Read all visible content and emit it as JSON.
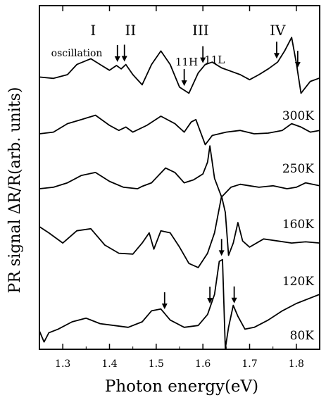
{
  "chart_data": {
    "type": "line",
    "xlabel": "Photon  energy(eV)",
    "ylabel": "PR  signal ΔR/R(arb. units)",
    "xlim": [
      1.25,
      1.85
    ],
    "x_ticks": [
      "1.3",
      "1.4",
      "1.5",
      "1.6",
      "1.7",
      "1.8"
    ],
    "grid": false,
    "region_labels": [
      {
        "text": "I",
        "x": 1.365
      },
      {
        "text": "II",
        "x": 1.445
      },
      {
        "text": "III",
        "x": 1.595
      },
      {
        "text": "IV",
        "x": 1.76
      }
    ],
    "annotations": [
      {
        "text": "oscillation",
        "x": 1.33
      },
      {
        "text": "11H",
        "x": 1.565
      },
      {
        "text": "11L",
        "x": 1.625
      }
    ],
    "series": [
      {
        "name": "300K",
        "x": [
          1.25,
          1.28,
          1.31,
          1.33,
          1.36,
          1.38,
          1.4,
          1.415,
          1.425,
          1.435,
          1.45,
          1.47,
          1.49,
          1.51,
          1.53,
          1.55,
          1.57,
          1.59,
          1.605,
          1.62,
          1.64,
          1.66,
          1.68,
          1.7,
          1.72,
          1.74,
          1.76,
          1.775,
          1.79,
          1.8,
          1.81,
          1.83,
          1.85
        ],
        "y": [
          0.18,
          0.14,
          0.25,
          0.55,
          0.72,
          0.55,
          0.38,
          0.52,
          0.42,
          0.55,
          0.25,
          -0.05,
          0.55,
          0.95,
          0.55,
          -0.12,
          -0.3,
          0.3,
          0.55,
          0.62,
          0.45,
          0.35,
          0.25,
          0.1,
          0.25,
          0.42,
          0.62,
          0.95,
          1.35,
          0.6,
          -0.3,
          0.05,
          0.15
        ]
      },
      {
        "name": "250K",
        "x": [
          1.25,
          1.28,
          1.31,
          1.34,
          1.37,
          1.4,
          1.42,
          1.435,
          1.45,
          1.48,
          1.51,
          1.54,
          1.56,
          1.575,
          1.585,
          1.595,
          1.605,
          1.62,
          1.65,
          1.68,
          1.71,
          1.74,
          1.77,
          1.79,
          1.81,
          1.83,
          1.85
        ],
        "y": [
          0.0,
          0.05,
          0.3,
          0.42,
          0.55,
          0.25,
          0.1,
          0.2,
          0.05,
          0.25,
          0.52,
          0.3,
          0.05,
          0.35,
          0.42,
          0.05,
          -0.32,
          -0.05,
          0.05,
          0.1,
          0.0,
          0.02,
          0.1,
          0.3,
          0.2,
          0.05,
          0.1
        ]
      },
      {
        "name": "160K",
        "x": [
          1.25,
          1.28,
          1.31,
          1.34,
          1.37,
          1.4,
          1.43,
          1.46,
          1.47,
          1.49,
          1.52,
          1.54,
          1.56,
          1.58,
          1.6,
          1.61,
          1.615,
          1.625,
          1.64,
          1.66,
          1.68,
          1.7,
          1.72,
          1.75,
          1.78,
          1.8,
          1.82,
          1.85
        ],
        "y": [
          0.0,
          0.05,
          0.2,
          0.45,
          0.55,
          0.25,
          0.05,
          0.0,
          0.08,
          0.2,
          0.7,
          0.55,
          0.2,
          0.3,
          0.5,
          0.9,
          1.45,
          0.35,
          -0.28,
          0.05,
          0.15,
          0.1,
          0.05,
          0.1,
          0.0,
          0.05,
          0.2,
          0.1
        ]
      },
      {
        "name": "120K",
        "x": [
          1.25,
          1.27,
          1.3,
          1.33,
          1.36,
          1.39,
          1.42,
          1.45,
          1.47,
          1.485,
          1.495,
          1.51,
          1.53,
          1.55,
          1.57,
          1.59,
          1.61,
          1.625,
          1.64,
          1.648,
          1.655,
          1.665,
          1.675,
          1.685,
          1.7,
          1.73,
          1.76,
          1.79,
          1.82,
          1.85
        ],
        "y": [
          0.45,
          0.3,
          0.05,
          0.35,
          0.4,
          0.0,
          -0.2,
          -0.22,
          0.05,
          0.3,
          -0.1,
          0.35,
          0.3,
          -0.05,
          -0.45,
          -0.55,
          -0.2,
          0.3,
          1.2,
          0.8,
          -0.25,
          0.05,
          0.55,
          0.1,
          -0.05,
          0.15,
          0.1,
          0.05,
          0.08,
          0.05
        ]
      },
      {
        "name": "80K",
        "x": [
          1.25,
          1.26,
          1.27,
          1.29,
          1.32,
          1.35,
          1.38,
          1.41,
          1.44,
          1.47,
          1.49,
          1.51,
          1.53,
          1.56,
          1.59,
          1.61,
          1.625,
          1.635,
          1.642,
          1.648,
          1.655,
          1.665,
          1.675,
          1.69,
          1.71,
          1.74,
          1.77,
          1.8,
          1.83,
          1.85
        ],
        "y": [
          0.0,
          -0.3,
          -0.05,
          0.05,
          0.25,
          0.35,
          0.2,
          0.15,
          0.1,
          0.25,
          0.55,
          0.6,
          0.3,
          0.1,
          0.15,
          0.45,
          1.0,
          1.9,
          1.95,
          -0.6,
          0.1,
          0.7,
          0.4,
          0.05,
          0.1,
          0.3,
          0.55,
          0.75,
          0.9,
          1.0
        ]
      }
    ],
    "arrows": [
      {
        "series": "300K",
        "x": 1.417
      },
      {
        "series": "300K",
        "x": 1.432
      },
      {
        "series": "300K",
        "x": 1.56
      },
      {
        "series": "300K",
        "x": 1.6
      },
      {
        "series": "300K",
        "x": 1.758
      },
      {
        "series": "300K",
        "x": 1.803
      },
      {
        "series": "80K",
        "x": 1.518
      },
      {
        "series": "80K",
        "x": 1.615
      },
      {
        "series": "80K",
        "x": 1.64
      },
      {
        "series": "80K",
        "x": 1.667
      }
    ]
  }
}
